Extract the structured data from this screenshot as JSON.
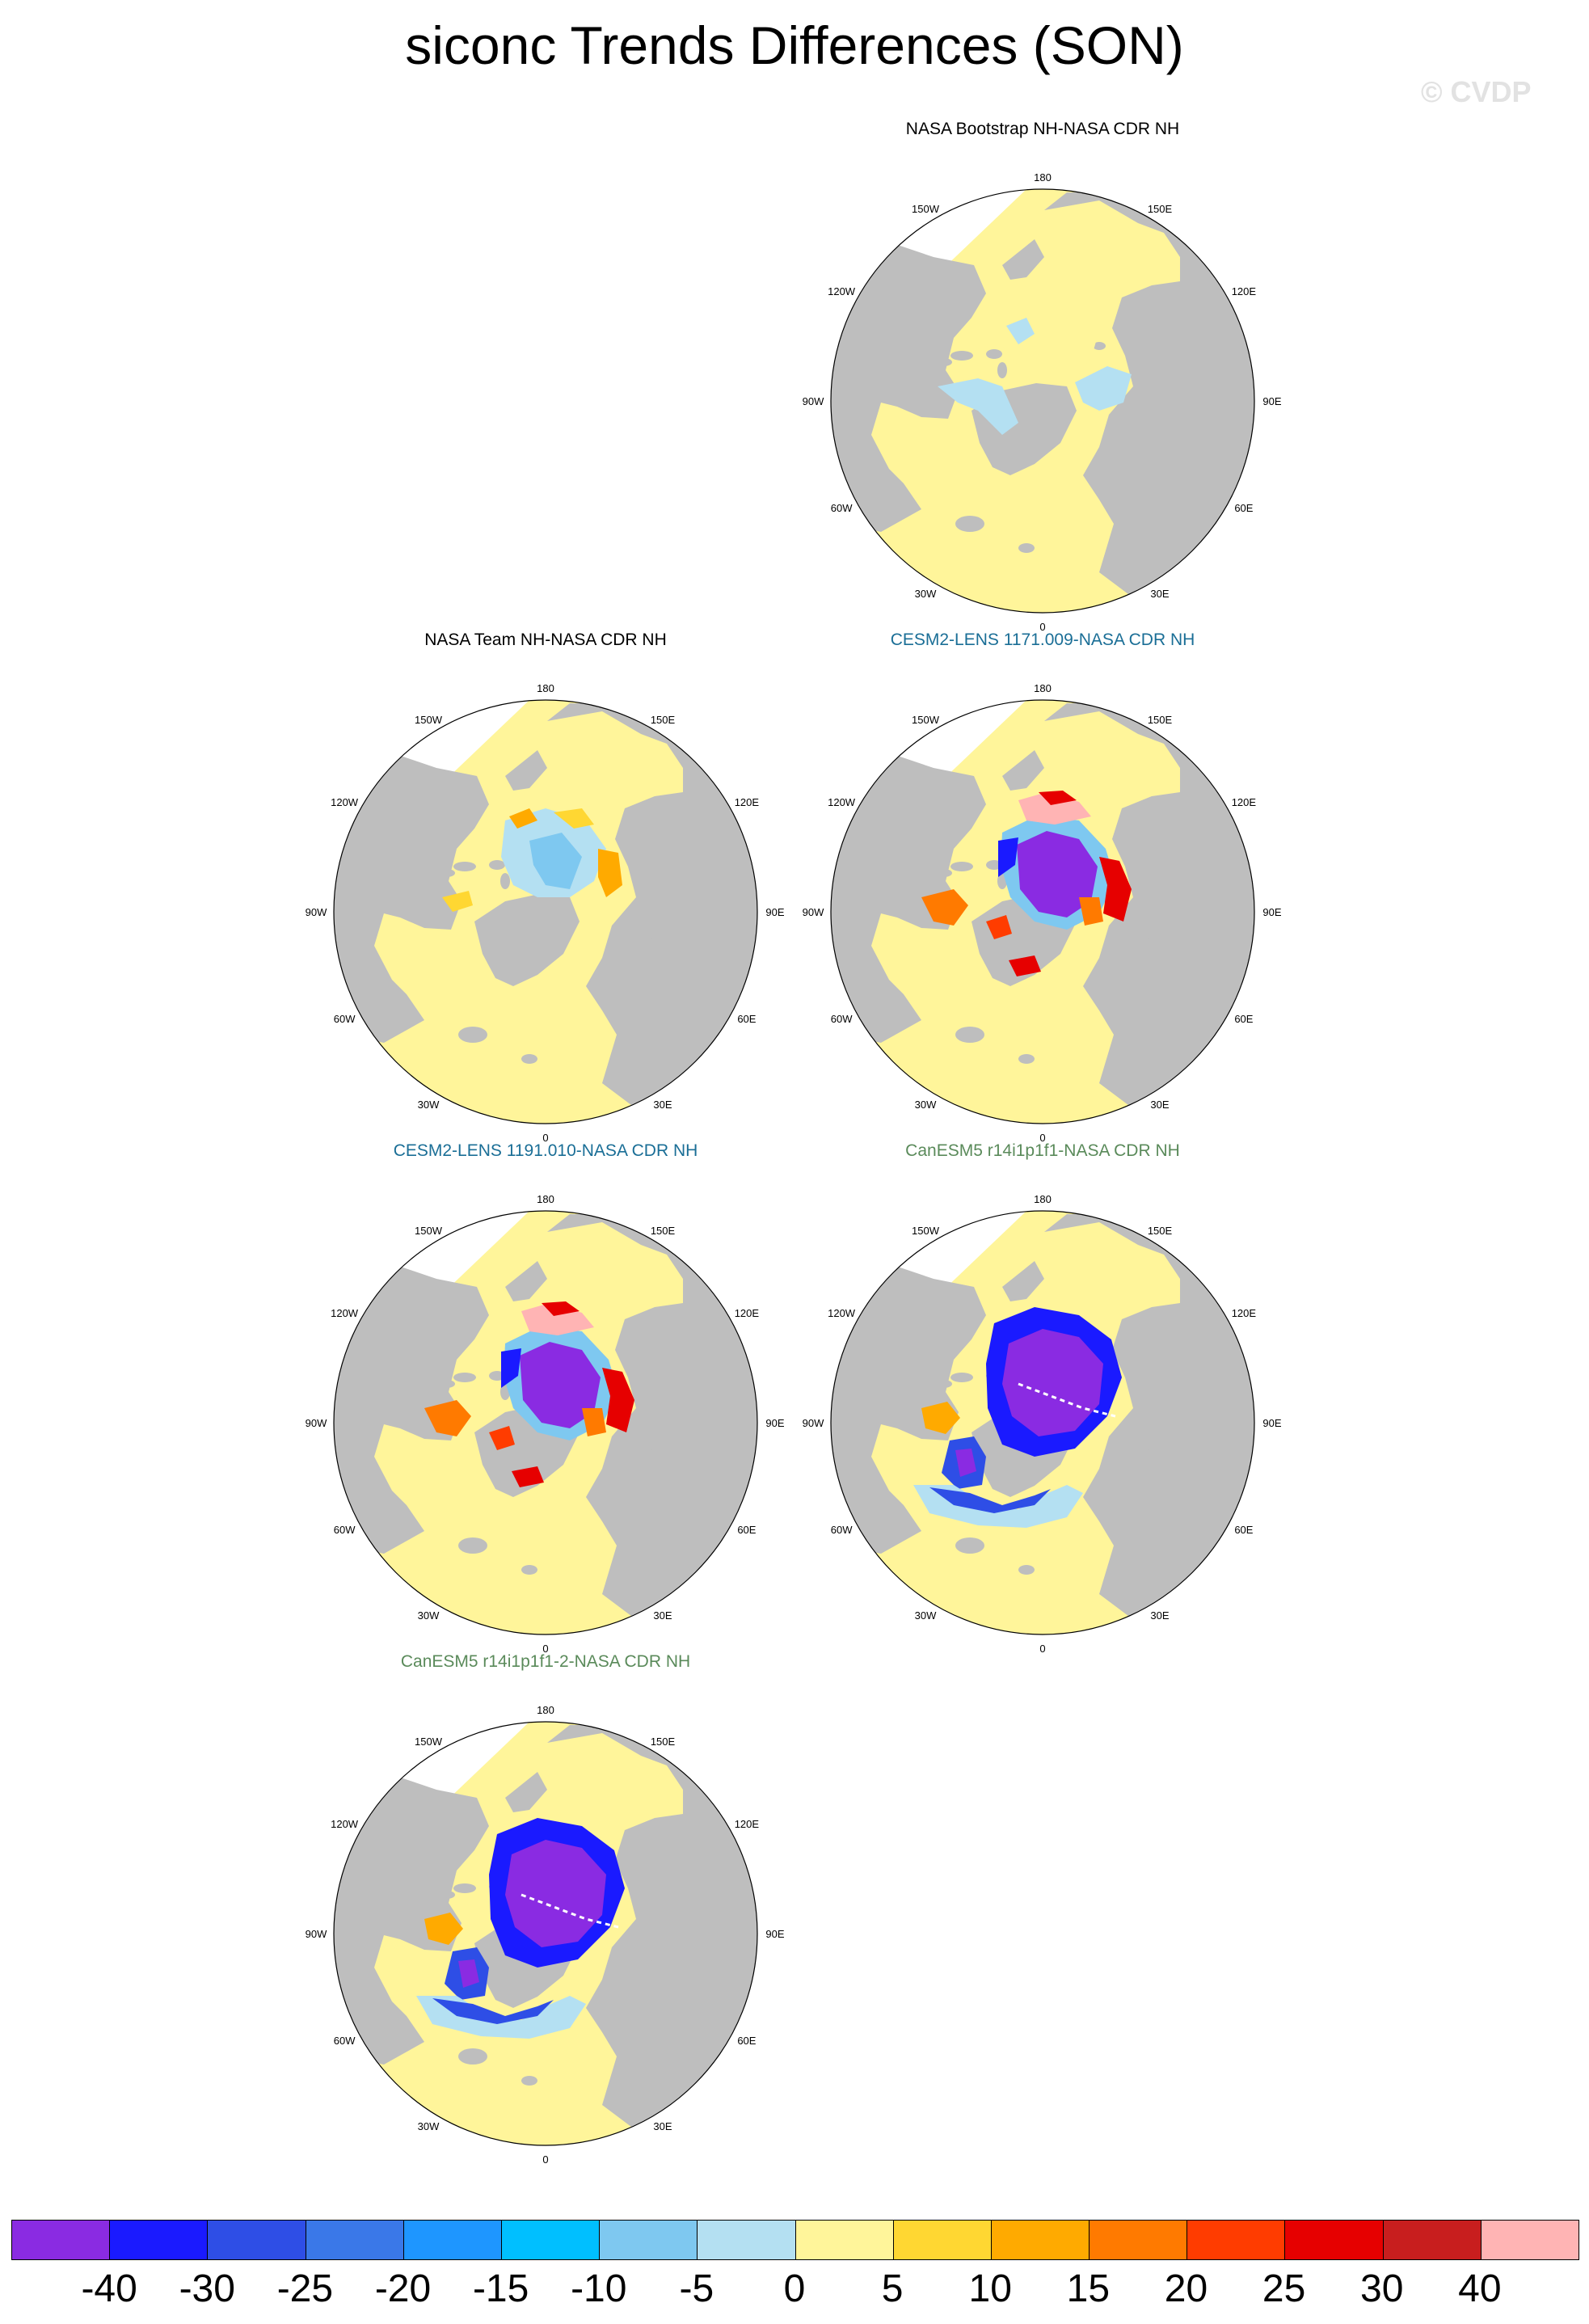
{
  "title": "siconc Trends Differences (SON)",
  "watermark": "© CVDP",
  "lon_labels": {
    "top": "180",
    "bottom": "0",
    "upper_left": "150W",
    "upper_right": "150E",
    "mid_upper_left": "120W",
    "mid_upper_right": "120E",
    "left": "90W",
    "right": "90E",
    "mid_lower_left": "60W",
    "mid_lower_right": "60E",
    "lower_left": "30W",
    "lower_right": "30E"
  },
  "panels": [
    {
      "title": "NASA Bootstrap NH-NASA CDR NH",
      "title_color": "#000000",
      "pattern": "small_neg"
    },
    {
      "title": "NASA Team NH-NASA CDR NH",
      "title_color": "#000000",
      "pattern": "mixed"
    },
    {
      "title": "CESM2-LENS 1171.009-NASA CDR NH",
      "title_color": "#1a6e96",
      "pattern": "strong_neg_pos"
    },
    {
      "title": "CESM2-LENS 1191.010-NASA CDR NH",
      "title_color": "#1a6e96",
      "pattern": "strong_neg_pos"
    },
    {
      "title": "CanESM5 r14i1p1f1-NASA CDR NH",
      "title_color": "#5a8a5a",
      "pattern": "strong_neg"
    },
    {
      "title": "CanESM5 r14i1p1f1-2-NASA CDR NH",
      "title_color": "#5a8a5a",
      "pattern": "strong_neg"
    }
  ],
  "colorbar": {
    "colors": [
      "#8a2be2",
      "#1a1aff",
      "#2e4ee6",
      "#3a78e8",
      "#1e96ff",
      "#00bfff",
      "#7ec8f0",
      "#b4e0f2",
      "#fff59a",
      "#ffd732",
      "#ffaa00",
      "#ff7a00",
      "#ff3c00",
      "#e60000",
      "#c81e1e",
      "#ffb4b4"
    ],
    "labels": [
      "-40",
      "-30",
      "-25",
      "-20",
      "-15",
      "-10",
      "-5",
      "0",
      "5",
      "10",
      "15",
      "20",
      "25",
      "30",
      "40"
    ]
  }
}
